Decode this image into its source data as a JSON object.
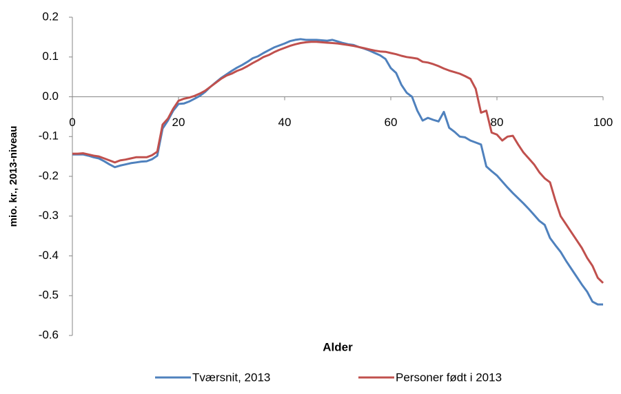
{
  "chart_data": {
    "type": "line",
    "x_label": "Alder",
    "y_label": "mio. kr., 2013-niveau",
    "x": [
      0,
      1,
      2,
      3,
      4,
      5,
      6,
      7,
      8,
      9,
      10,
      11,
      12,
      13,
      14,
      15,
      16,
      17,
      18,
      19,
      20,
      21,
      22,
      23,
      24,
      25,
      26,
      27,
      28,
      29,
      30,
      31,
      32,
      33,
      34,
      35,
      36,
      37,
      38,
      39,
      40,
      41,
      42,
      43,
      44,
      45,
      46,
      47,
      48,
      49,
      50,
      51,
      52,
      53,
      54,
      55,
      56,
      57,
      58,
      59,
      60,
      61,
      62,
      63,
      64,
      65,
      66,
      67,
      68,
      69,
      70,
      71,
      72,
      73,
      74,
      75,
      76,
      77,
      78,
      79,
      80,
      81,
      82,
      83,
      84,
      85,
      86,
      87,
      88,
      89,
      90,
      91,
      92,
      93,
      94,
      95,
      96,
      97,
      98,
      99,
      100
    ],
    "series": [
      {
        "name": "Tværsnit, 2013",
        "color": "#4f81bd",
        "values": [
          -0.145,
          -0.145,
          -0.145,
          -0.148,
          -0.152,
          -0.155,
          -0.162,
          -0.17,
          -0.177,
          -0.173,
          -0.17,
          -0.167,
          -0.165,
          -0.163,
          -0.162,
          -0.157,
          -0.148,
          -0.08,
          -0.06,
          -0.035,
          -0.018,
          -0.017,
          -0.012,
          -0.005,
          0.002,
          0.012,
          0.025,
          0.036,
          0.047,
          0.056,
          0.065,
          0.073,
          0.08,
          0.088,
          0.097,
          0.102,
          0.11,
          0.117,
          0.124,
          0.129,
          0.134,
          0.14,
          0.143,
          0.145,
          0.143,
          0.143,
          0.143,
          0.142,
          0.141,
          0.143,
          0.139,
          0.135,
          0.132,
          0.13,
          0.125,
          0.121,
          0.116,
          0.11,
          0.104,
          0.095,
          0.072,
          0.06,
          0.03,
          0.01,
          0.0,
          -0.035,
          -0.06,
          -0.053,
          -0.058,
          -0.062,
          -0.038,
          -0.078,
          -0.088,
          -0.1,
          -0.102,
          -0.11,
          -0.115,
          -0.12,
          -0.175,
          -0.187,
          -0.198,
          -0.213,
          -0.228,
          -0.242,
          -0.255,
          -0.268,
          -0.282,
          -0.297,
          -0.312,
          -0.322,
          -0.355,
          -0.373,
          -0.39,
          -0.412,
          -0.432,
          -0.452,
          -0.472,
          -0.49,
          -0.515,
          -0.522,
          -0.522
        ]
      },
      {
        "name": "Personer født i 2013",
        "color": "#c0504d",
        "values": [
          -0.143,
          -0.143,
          -0.142,
          -0.145,
          -0.148,
          -0.15,
          -0.155,
          -0.16,
          -0.165,
          -0.16,
          -0.158,
          -0.155,
          -0.152,
          -0.152,
          -0.152,
          -0.147,
          -0.138,
          -0.07,
          -0.055,
          -0.03,
          -0.01,
          -0.005,
          -0.002,
          0.002,
          0.008,
          0.015,
          0.025,
          0.035,
          0.045,
          0.053,
          0.058,
          0.065,
          0.07,
          0.077,
          0.085,
          0.092,
          0.1,
          0.105,
          0.112,
          0.118,
          0.123,
          0.128,
          0.132,
          0.135,
          0.137,
          0.138,
          0.138,
          0.137,
          0.136,
          0.135,
          0.134,
          0.132,
          0.13,
          0.128,
          0.125,
          0.122,
          0.119,
          0.116,
          0.114,
          0.113,
          0.11,
          0.107,
          0.103,
          0.1,
          0.098,
          0.096,
          0.088,
          0.086,
          0.082,
          0.077,
          0.071,
          0.066,
          0.062,
          0.058,
          0.052,
          0.045,
          0.02,
          -0.04,
          -0.035,
          -0.09,
          -0.095,
          -0.11,
          -0.1,
          -0.098,
          -0.12,
          -0.14,
          -0.155,
          -0.17,
          -0.19,
          -0.205,
          -0.215,
          -0.26,
          -0.3,
          -0.32,
          -0.34,
          -0.36,
          -0.38,
          -0.405,
          -0.425,
          -0.455,
          -0.468
        ]
      }
    ],
    "xlim": [
      0,
      100
    ],
    "xticks": [
      0,
      20,
      40,
      60,
      80,
      100
    ],
    "ylim": [
      -0.6,
      0.2
    ],
    "yticks": [
      0.2,
      0.1,
      {
        "value": 0,
        "label": "0.0"
      },
      -0.1,
      -0.2,
      -0.3,
      -0.4,
      -0.5,
      -0.6
    ],
    "legend": "bottom"
  }
}
